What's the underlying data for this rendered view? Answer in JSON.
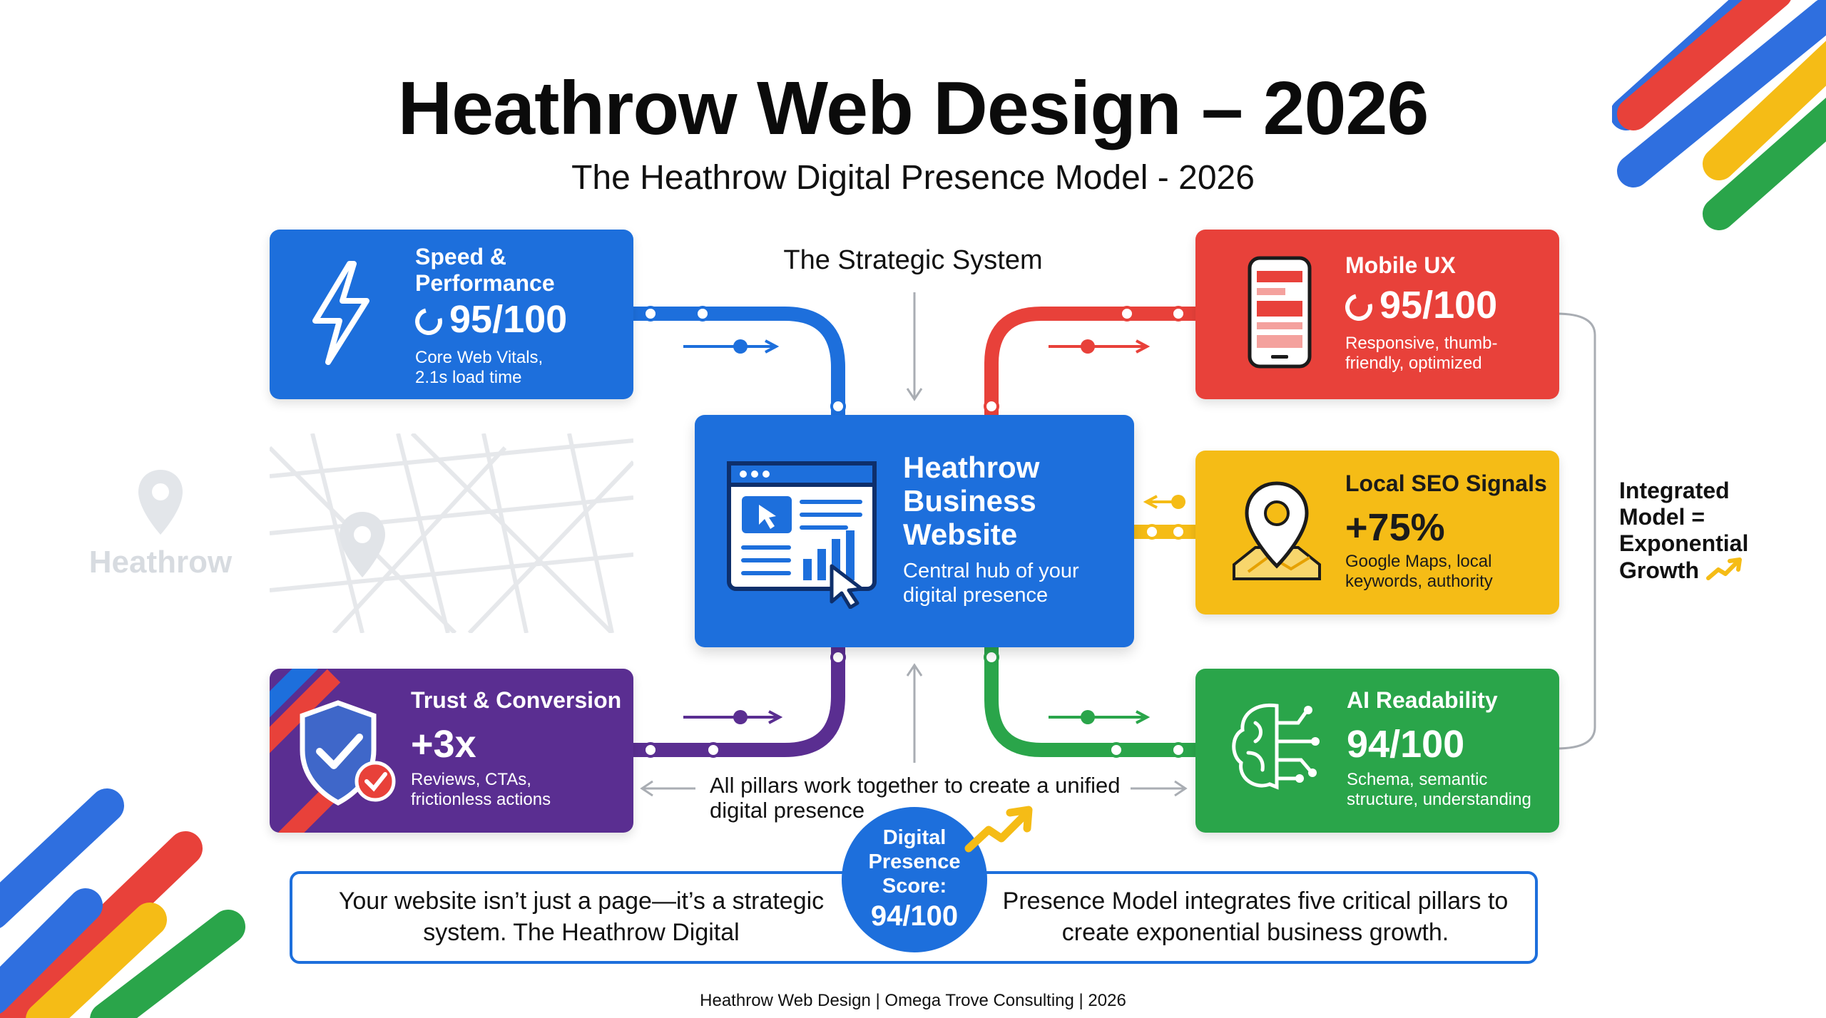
{
  "title": "Heathrow Web Design – 2026",
  "subtitle": "The Heathrow Digital Presence Model - 2026",
  "system_label": "The Strategic System",
  "map_label": "Heathrow",
  "hub": {
    "title": "Heathrow Business Website",
    "description": "Central hub of your digital presence"
  },
  "pillars": {
    "speed": {
      "title": "Speed & Performance",
      "score": "95/100",
      "description": "Core Web Vitals, 2.1s load time",
      "color": "#1d6fdc",
      "icon": "lightning-bolt-icon"
    },
    "mobile": {
      "title": "Mobile UX",
      "score": "95/100",
      "description": "Responsive, thumb-friendly, optimized",
      "color": "#e8413a",
      "icon": "smartphone-icon"
    },
    "seo": {
      "title": "Local SEO Signals",
      "score": "+75%",
      "description": "Google Maps, local keywords, authority",
      "color": "#f5bc16",
      "icon": "map-pin-icon"
    },
    "trust": {
      "title": "Trust & Conversion",
      "score": "+3x",
      "description": "Reviews, CTAs, frictionless actions",
      "color": "#5a2e91",
      "icon": "shield-check-icon"
    },
    "ai": {
      "title": "AI Readability",
      "score": "94/100",
      "description": "Schema, semantic structure, understanding",
      "color": "#2aa54a",
      "icon": "brain-circuit-icon"
    }
  },
  "integrated_note": "Integrated Model = Exponential Growth",
  "pillars_note": "All pillars work together to create a unified digital presence",
  "score_badge": {
    "label": "Digital Presence Score:",
    "value": "94/100"
  },
  "bottom_text": {
    "left": "Your website isn’t just a page—it’s a strategic system. The Heathrow Digital",
    "right": "Presence Model integrates five critical pillars to create exponential business growth."
  },
  "footer": "Heathrow Web Design | Omega Trove Consulting | 2026"
}
